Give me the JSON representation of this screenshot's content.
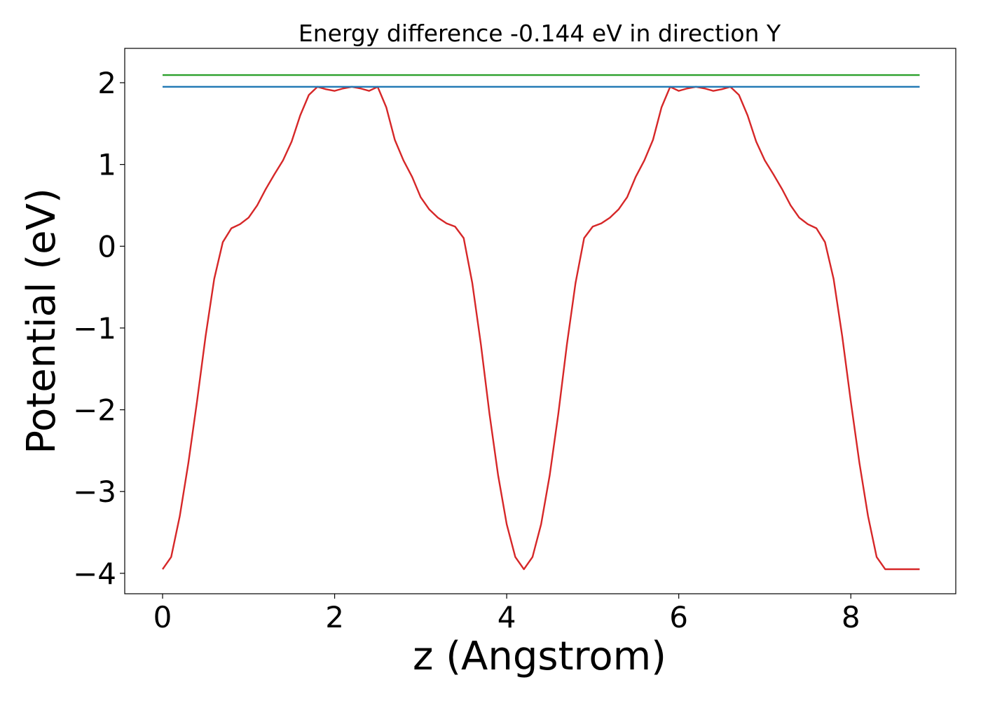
{
  "chart_data": {
    "type": "line",
    "title": "Energy difference -0.144 eV in direction Y",
    "xlabel": "z (Angstrom)",
    "ylabel": "Potential (eV)",
    "xlim": [
      -0.44,
      9.22
    ],
    "ylim": [
      -4.25,
      2.42
    ],
    "x_ticks": [
      0,
      2,
      4,
      6,
      8
    ],
    "y_ticks": [
      2,
      1,
      0,
      -1,
      -2,
      -3,
      -4
    ],
    "x_tick_labels": [
      "0",
      "2",
      "4",
      "6",
      "8"
    ],
    "y_tick_labels": [
      "2",
      "1",
      "0",
      "−1",
      "−2",
      "−3",
      "−4"
    ],
    "grid": false,
    "legend": "none",
    "series": [
      {
        "color": "#d62728",
        "x": [
          0,
          0.1,
          0.2,
          0.3,
          0.4,
          0.5,
          0.6,
          0.7,
          0.8,
          0.9,
          1.0,
          1.1,
          1.2,
          1.3,
          1.4,
          1.5,
          1.6,
          1.7,
          1.8,
          1.9,
          2.0,
          2.1,
          2.2,
          2.3,
          2.4,
          2.5,
          2.6,
          2.7,
          2.8,
          2.9,
          3.0,
          3.1,
          3.2,
          3.3,
          3.4,
          3.5,
          3.6,
          3.7,
          3.8,
          3.9,
          4.0,
          4.1,
          4.2,
          4.3,
          4.4,
          4.5,
          4.6,
          4.7,
          4.8,
          4.9,
          5.0,
          5.1,
          5.2,
          5.3,
          5.4,
          5.5,
          5.6,
          5.7,
          5.8,
          5.9,
          6.0,
          6.1,
          6.2,
          6.3,
          6.4,
          6.5,
          6.6,
          6.7,
          6.8,
          6.9,
          7.0,
          7.1,
          7.2,
          7.3,
          7.4,
          7.5,
          7.6,
          7.7,
          7.8,
          7.9,
          8.0,
          8.1,
          8.2,
          8.3,
          8.4,
          8.5,
          8.6,
          8.7,
          8.8
        ],
        "y": [
          -3.95,
          -3.8,
          -3.3,
          -2.65,
          -1.9,
          -1.1,
          -0.4,
          0.05,
          0.22,
          0.27,
          0.35,
          0.5,
          0.7,
          0.88,
          1.05,
          1.28,
          1.6,
          1.85,
          1.95,
          1.92,
          1.9,
          1.93,
          1.95,
          1.93,
          1.9,
          1.95,
          1.7,
          1.3,
          1.05,
          0.85,
          0.6,
          0.45,
          0.35,
          0.28,
          0.24,
          0.1,
          -0.45,
          -1.2,
          -2.05,
          -2.8,
          -3.4,
          -3.8,
          -3.95,
          -3.8,
          -3.4,
          -2.8,
          -2.05,
          -1.2,
          -0.45,
          0.1,
          0.24,
          0.28,
          0.35,
          0.45,
          0.6,
          0.85,
          1.05,
          1.3,
          1.7,
          1.95,
          1.9,
          1.93,
          1.95,
          1.93,
          1.9,
          1.92,
          1.95,
          1.85,
          1.6,
          1.28,
          1.05,
          0.88,
          0.7,
          0.5,
          0.35,
          0.27,
          0.22,
          0.05,
          -0.4,
          -1.1,
          -1.9,
          -2.65,
          -3.3,
          -3.8,
          -3.95,
          -3.95,
          -3.95,
          -3.95,
          -3.95
        ]
      },
      {
        "color": "#1f77b4",
        "x": [
          0,
          8.8
        ],
        "y": [
          1.95,
          1.95
        ]
      },
      {
        "color": "#2ca02c",
        "x": [
          0,
          8.8
        ],
        "y": [
          2.094,
          2.094
        ]
      }
    ]
  }
}
